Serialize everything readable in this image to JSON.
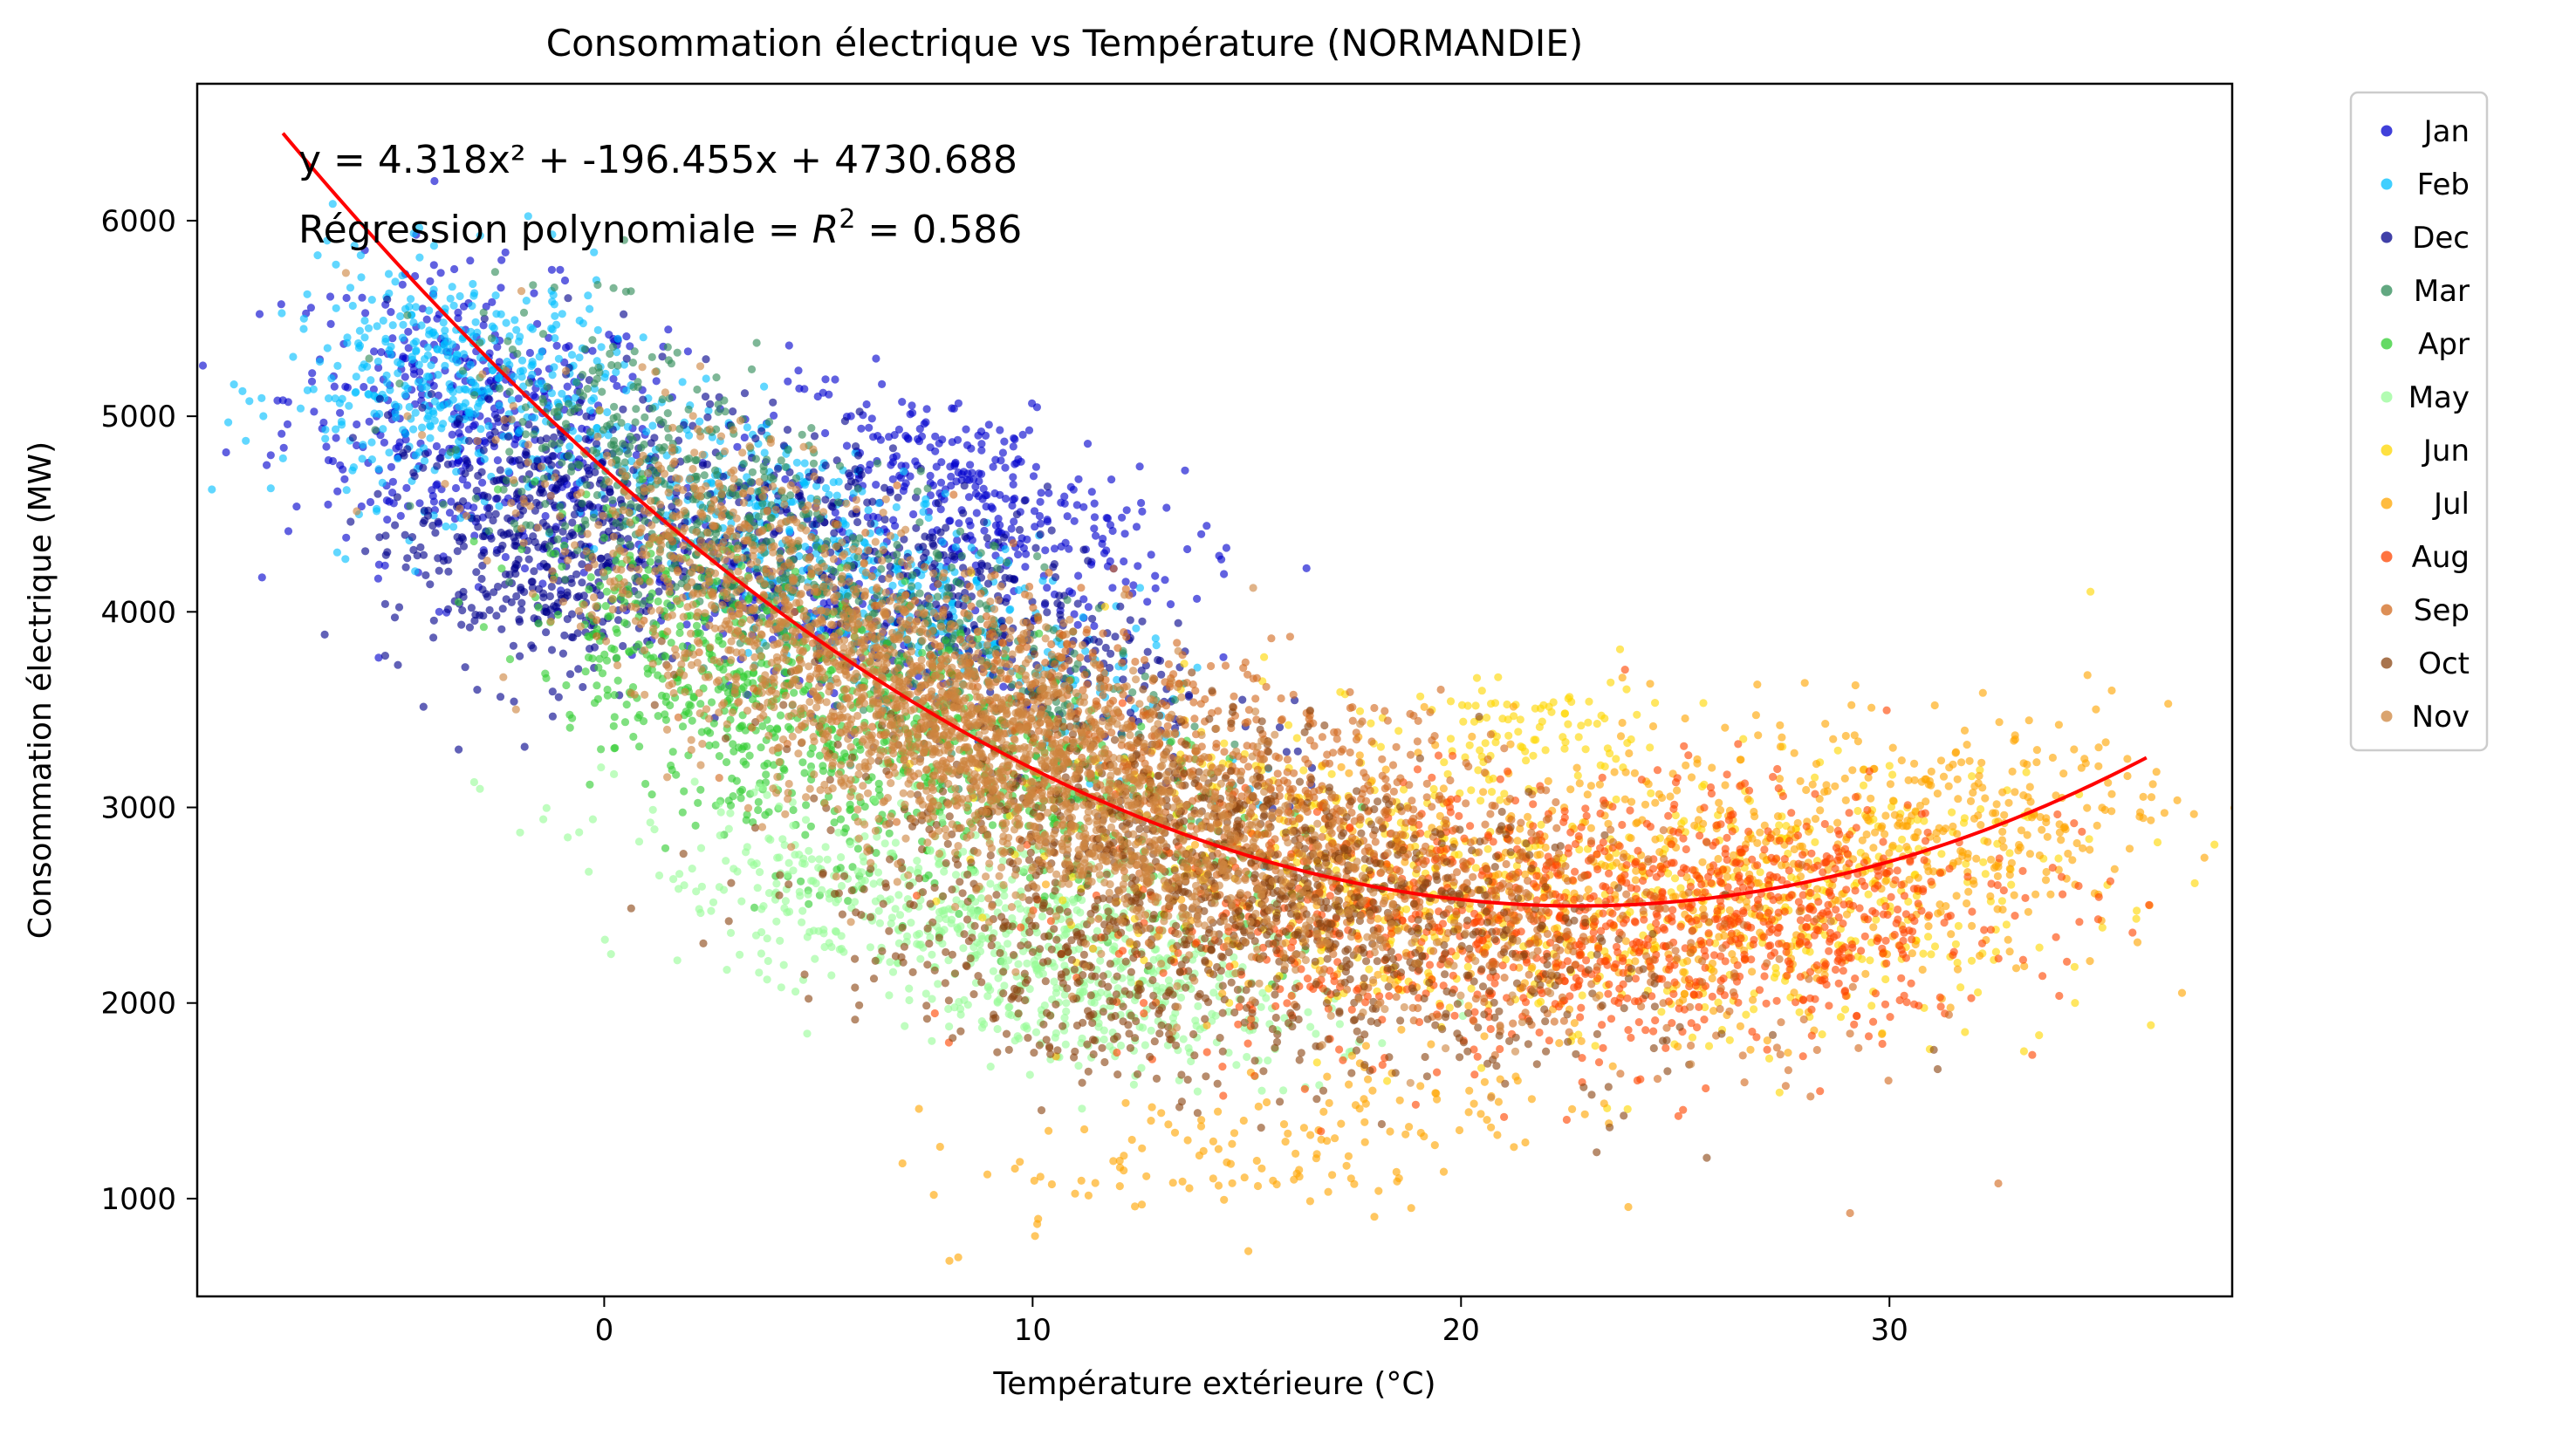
{
  "chart_data": {
    "type": "scatter",
    "title": "Consommation électrique vs Température (NORMANDIE)",
    "xlabel": "Température extérieure (°C)",
    "ylabel": "Consommation électrique (MW)",
    "xlim": [
      -9.5,
      38
    ],
    "ylim": [
      500,
      6700
    ],
    "xticks": [
      0,
      10,
      20,
      30
    ],
    "yticks": [
      1000,
      2000,
      3000,
      4000,
      5000,
      6000
    ],
    "grid": false,
    "legend_position": "outside-top-right",
    "annotations": {
      "equation": "y = 4.318x² + -196.455x + 4730.688",
      "r2_prefix": "Régression polynomiale = ",
      "r2_symbol": "R",
      "r2_exp": "2",
      "r2_suffix": " = 0.586"
    },
    "regression": {
      "name": "",
      "coefficients": [
        4.318,
        -196.455,
        4730.688
      ],
      "x_range": [
        -7.5,
        36
      ],
      "color": "#ff0000"
    },
    "series": [
      {
        "name": "Jan",
        "color": "#0000cd",
        "clusters": [
          [
            -3.0,
            4950,
            2.2,
            380,
            -0.2,
            450
          ],
          [
            8.5,
            4600,
            2.5,
            300,
            -0.6,
            350
          ],
          [
            4.5,
            4000,
            2.5,
            250,
            -0.5,
            200
          ]
        ]
      },
      {
        "name": "Feb",
        "color": "#00bfff",
        "clusters": [
          [
            -3.5,
            5150,
            2.0,
            300,
            0.0,
            400
          ],
          [
            5.5,
            4300,
            3.5,
            450,
            -0.8,
            500
          ]
        ]
      },
      {
        "name": "Dec",
        "color": "#00008b",
        "clusters": [
          [
            -1.5,
            4350,
            1.8,
            350,
            0.0,
            500
          ],
          [
            7.5,
            4200,
            3.5,
            450,
            -0.8,
            400
          ]
        ]
      },
      {
        "name": "Mar",
        "color": "#2e8b57",
        "clusters": [
          [
            1.5,
            4600,
            2.5,
            450,
            -0.6,
            400
          ],
          [
            7.0,
            3900,
            3.0,
            400,
            -0.7,
            400
          ]
        ]
      },
      {
        "name": "Apr",
        "color": "#32cd32",
        "clusters": [
          [
            3.0,
            3600,
            2.5,
            450,
            -0.6,
            500
          ],
          [
            9.0,
            3200,
            3.5,
            400,
            -0.7,
            400
          ]
        ]
      },
      {
        "name": "May",
        "color": "#98fb98",
        "clusters": [
          [
            7.5,
            2450,
            3.5,
            300,
            -0.5,
            450
          ],
          [
            12.0,
            2100,
            2.5,
            250,
            -0.4,
            350
          ]
        ]
      },
      {
        "name": "Jun",
        "color": "#ffd700",
        "clusters": [
          [
            18.0,
            2700,
            4.0,
            400,
            -0.3,
            450
          ],
          [
            21.5,
            3400,
            1.5,
            150,
            0.0,
            80
          ],
          [
            28.0,
            2500,
            3.5,
            350,
            0.2,
            300
          ]
        ]
      },
      {
        "name": "Jul",
        "color": "#ffa500",
        "clusters": [
          [
            25.0,
            2650,
            5.0,
            400,
            0.1,
            600
          ],
          [
            31.5,
            2900,
            2.5,
            250,
            0.3,
            200
          ],
          [
            14.0,
            1200,
            3.5,
            200,
            0.3,
            90
          ],
          [
            19.0,
            1450,
            2.5,
            200,
            0.2,
            60
          ]
        ]
      },
      {
        "name": "Aug",
        "color": "#ff4500",
        "clusters": [
          [
            22.0,
            2450,
            5.0,
            350,
            0.2,
            900
          ],
          [
            27.5,
            2350,
            2.5,
            300,
            0.1,
            250
          ]
        ]
      },
      {
        "name": "Sep",
        "color": "#d2691e",
        "clusters": [
          [
            15.0,
            3050,
            5.5,
            550,
            -0.8,
            1200
          ]
        ]
      },
      {
        "name": "Oct",
        "color": "#8b4513",
        "clusters": [
          [
            15.0,
            2600,
            4.5,
            450,
            -0.6,
            1100
          ],
          [
            10.0,
            2150,
            3.0,
            300,
            -0.6,
            250
          ]
        ]
      },
      {
        "name": "Nov",
        "color": "#cd853f",
        "clusters": [
          [
            7.5,
            3550,
            4.0,
            550,
            -0.8,
            1500
          ],
          [
            3.0,
            4500,
            1.5,
            300,
            -0.3,
            150
          ],
          [
            10.5,
            3050,
            4.5,
            450,
            -0.7,
            800
          ]
        ]
      }
    ]
  }
}
